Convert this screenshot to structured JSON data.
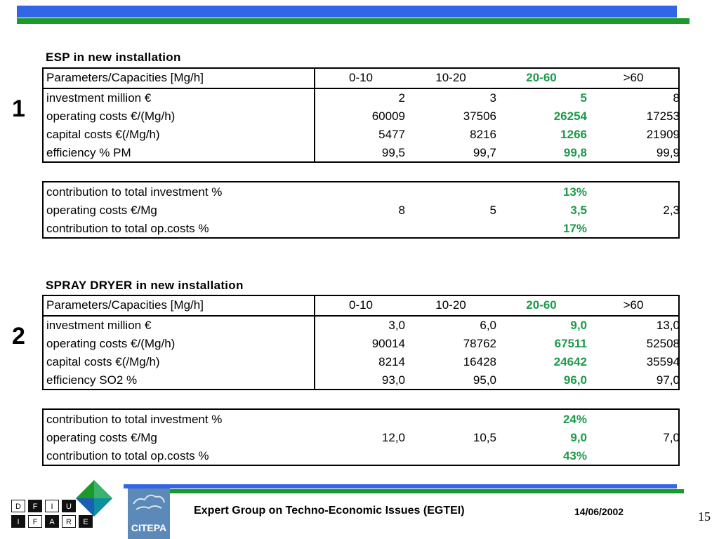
{
  "colors": {
    "blue_bar": "#3366e6",
    "green_bar": "#1a9a2a",
    "highlight": "#1e9a4a"
  },
  "section1": {
    "number": "1",
    "title": "ESP in new installation",
    "header": [
      "Parameters/Capacities [Mg/h]",
      "0-10",
      "10-20",
      "20-60",
      ">60"
    ],
    "rows": [
      [
        "investment million €",
        "2",
        "3",
        "5",
        "8"
      ],
      [
        "operating costs €/(Mg/h)",
        "60009",
        "37506",
        "26254",
        "17253"
      ],
      [
        "capital costs €(/Mg/h)",
        "5477",
        "8216",
        "1266",
        "21909"
      ],
      [
        "efficiency % PM",
        "99,5",
        "99,7",
        "99,8",
        "99,9"
      ]
    ],
    "summary": [
      [
        "contribution to total investment %",
        "",
        "",
        "13%",
        ""
      ],
      [
        "operating costs €/Mg",
        "8",
        "5",
        "3,5",
        "2,3"
      ],
      [
        "contribution to total op.costs %",
        "",
        "",
        "17%",
        ""
      ]
    ]
  },
  "section2": {
    "number": "2",
    "title": "SPRAY DRYER  in new installation",
    "header": [
      "Parameters/Capacities [Mg/h]",
      "0-10",
      "10-20",
      "20-60",
      ">60"
    ],
    "rows": [
      [
        "investment million €",
        "3,0",
        "6,0",
        "9,0",
        "13,0"
      ],
      [
        "operating costs €/(Mg/h)",
        "90014",
        "78762",
        "67511",
        "52508"
      ],
      [
        "capital costs €(/Mg/h)",
        "8214",
        "16428",
        "24642",
        "35594"
      ],
      [
        "efficiency SO2 %",
        "93,0",
        "95,0",
        "96,0",
        "97,0"
      ]
    ],
    "summary": [
      [
        "contribution to total investment %",
        "",
        "",
        "24%",
        ""
      ],
      [
        "operating costs €/Mg",
        "12,0",
        "10,5",
        "9,0",
        "7,0"
      ],
      [
        "contribution to total op.costs %",
        "",
        "",
        "43%",
        ""
      ]
    ]
  },
  "footer": {
    "org": "Expert Group on Techno-Economic Issues (EGTEI)",
    "date": "14/06/2002",
    "page": "15",
    "logo_top": [
      "D",
      "F",
      "I",
      "U"
    ],
    "logo_bottom": [
      "I",
      "F",
      "A",
      "R",
      "E"
    ],
    "citepa": "CITEPA"
  }
}
